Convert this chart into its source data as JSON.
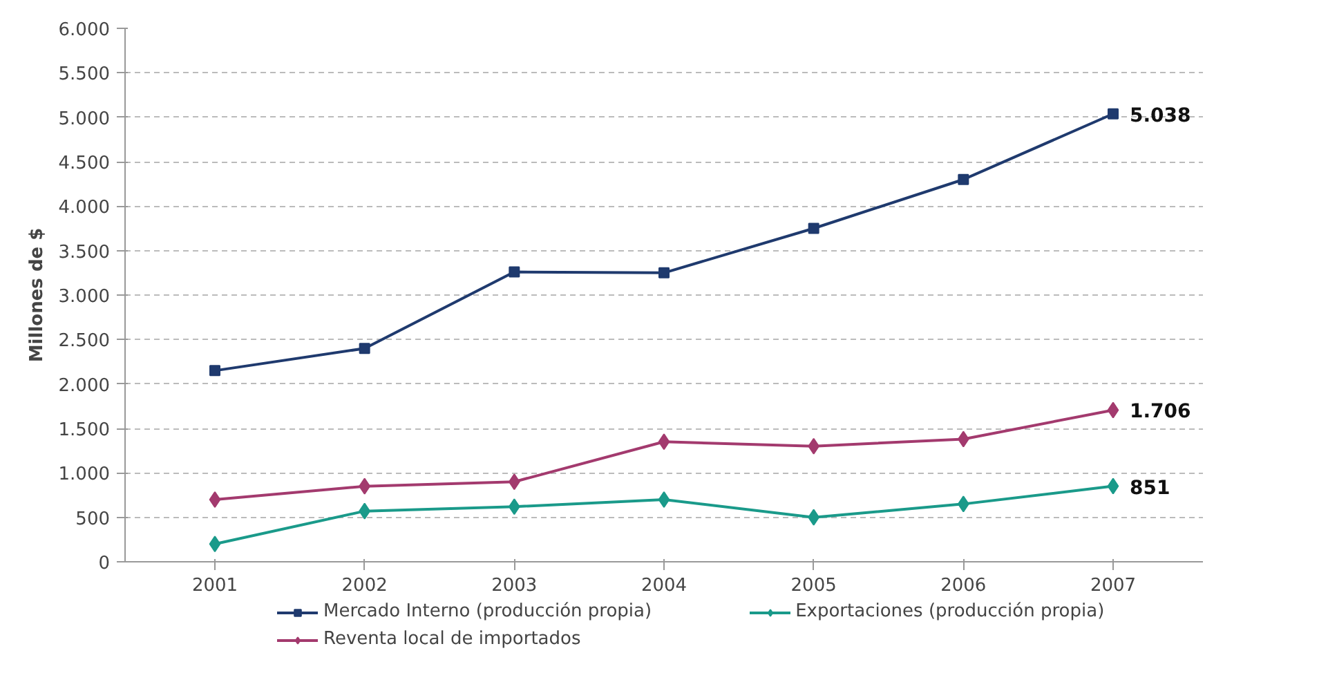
{
  "chart_data": {
    "type": "line",
    "ylabel": "Millones de $",
    "categories": [
      "2001",
      "2002",
      "2003",
      "2004",
      "2005",
      "2006",
      "2007"
    ],
    "series": [
      {
        "name": "Mercado Interno (producción propia)",
        "color": "#1f3a6e",
        "marker": "square",
        "values": [
          2150,
          2400,
          3260,
          3250,
          3750,
          4300,
          5038
        ],
        "value_labels": [
          null,
          null,
          null,
          null,
          null,
          null,
          "5.038"
        ]
      },
      {
        "name": "Exportaciones (producción propia)",
        "color": "#1a9a8a",
        "marker": "diamond",
        "values": [
          200,
          570,
          620,
          700,
          500,
          650,
          851
        ],
        "value_labels": [
          null,
          null,
          null,
          null,
          null,
          null,
          "851"
        ]
      },
      {
        "name": "Reventa local de importados",
        "color": "#a33a6e",
        "marker": "diamond",
        "values": [
          700,
          850,
          900,
          1350,
          1300,
          1380,
          1706
        ],
        "value_labels": [
          null,
          null,
          null,
          null,
          null,
          null,
          "1.706"
        ]
      }
    ],
    "ylim": [
      0,
      6000
    ],
    "yticks": [
      {
        "value": 0,
        "label": "0"
      },
      {
        "value": 500,
        "label": "500"
      },
      {
        "value": 1000,
        "label": "1.000"
      },
      {
        "value": 1500,
        "label": "1.500"
      },
      {
        "value": 2000,
        "label": "2.000"
      },
      {
        "value": 2500,
        "label": "2.500"
      },
      {
        "value": 3000,
        "label": "3.000"
      },
      {
        "value": 3500,
        "label": "3.500"
      },
      {
        "value": 4000,
        "label": "4.000"
      },
      {
        "value": 4500,
        "label": "4.500"
      },
      {
        "value": 5000,
        "label": "5.000"
      },
      {
        "value": 5500,
        "label": "5.500"
      },
      {
        "value": 6000,
        "label": "6.000"
      }
    ],
    "grid": "y",
    "legend": "bottom",
    "line_style": "solid"
  }
}
